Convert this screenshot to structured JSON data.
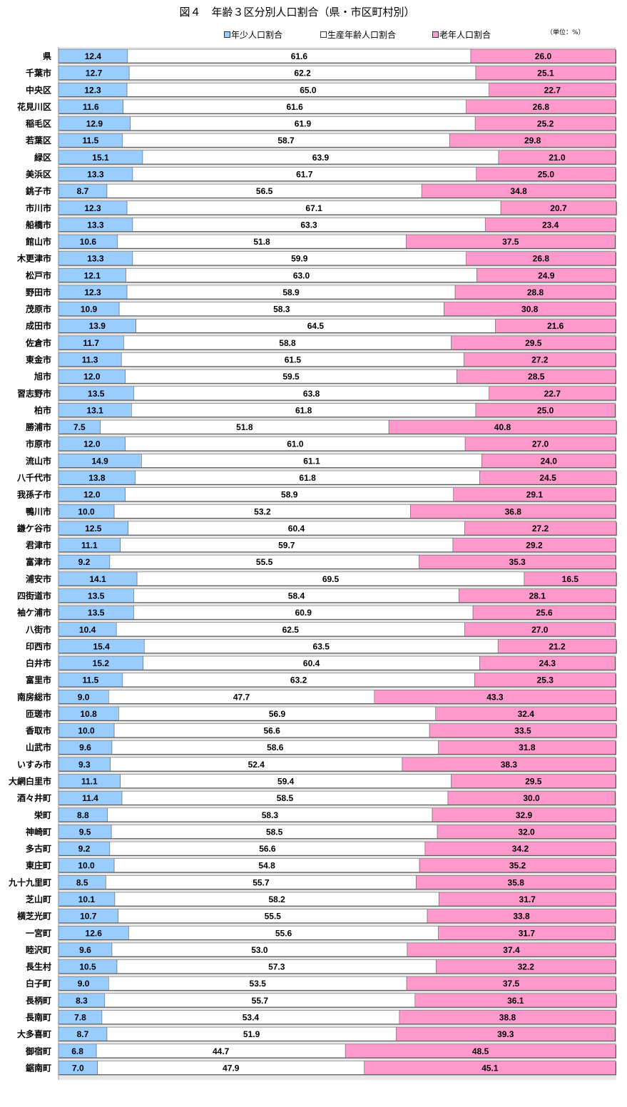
{
  "chart_data": {
    "type": "bar",
    "orientation": "horizontal",
    "stacked": "100%",
    "title": "図４　年齢３区分別人口割合（県・市区町村別）",
    "unit": "（単位：%）",
    "legend_position": "top",
    "xlim": [
      0,
      100
    ],
    "grid": false,
    "categories": [
      "県",
      "千葉市",
      "中央区",
      "花見川区",
      "稲毛区",
      "若葉区",
      "緑区",
      "美浜区",
      "銚子市",
      "市川市",
      "船橋市",
      "館山市",
      "木更津市",
      "松戸市",
      "野田市",
      "茂原市",
      "成田市",
      "佐倉市",
      "東金市",
      "旭市",
      "習志野市",
      "柏市",
      "勝浦市",
      "市原市",
      "流山市",
      "八千代市",
      "我孫子市",
      "鴨川市",
      "鎌ケ谷市",
      "君津市",
      "富津市",
      "浦安市",
      "四街道市",
      "袖ケ浦市",
      "八街市",
      "印西市",
      "白井市",
      "富里市",
      "南房総市",
      "匝瑳市",
      "香取市",
      "山武市",
      "いすみ市",
      "大網白里市",
      "酒々井町",
      "栄町",
      "神崎町",
      "多古町",
      "東庄町",
      "九十九里町",
      "芝山町",
      "横芝光町",
      "一宮町",
      "睦沢町",
      "長生村",
      "白子町",
      "長柄町",
      "長南町",
      "大多喜町",
      "御宿町",
      "鋸南町"
    ],
    "series": [
      {
        "name": "年少人口割合",
        "color": "#99ccff",
        "values": [
          12.4,
          12.7,
          12.3,
          11.6,
          12.9,
          11.5,
          15.1,
          13.3,
          8.7,
          12.3,
          13.3,
          10.6,
          13.3,
          12.1,
          12.3,
          10.9,
          13.9,
          11.7,
          11.3,
          12.0,
          13.5,
          13.1,
          7.5,
          12.0,
          14.9,
          13.8,
          12.0,
          10.0,
          12.5,
          11.1,
          9.2,
          14.1,
          13.5,
          13.5,
          10.4,
          15.4,
          15.2,
          11.5,
          9.0,
          10.8,
          10.0,
          9.6,
          9.3,
          11.1,
          11.4,
          8.8,
          9.5,
          9.2,
          10.0,
          8.5,
          10.1,
          10.7,
          12.6,
          9.6,
          10.5,
          9.0,
          8.3,
          7.8,
          8.7,
          6.8,
          7.0
        ]
      },
      {
        "name": "生産年齢人口割合",
        "color": "#ffffff",
        "values": [
          61.6,
          62.2,
          65.0,
          61.6,
          61.9,
          58.7,
          63.9,
          61.7,
          56.5,
          67.1,
          63.3,
          51.8,
          59.9,
          63.0,
          58.9,
          58.3,
          64.5,
          58.8,
          61.5,
          59.5,
          63.8,
          61.8,
          51.8,
          61.0,
          61.1,
          61.8,
          58.9,
          53.2,
          60.4,
          59.7,
          55.5,
          69.5,
          58.4,
          60.9,
          62.5,
          63.5,
          60.4,
          63.2,
          47.7,
          56.9,
          56.6,
          58.6,
          52.4,
          59.4,
          58.5,
          58.3,
          58.5,
          56.6,
          54.8,
          55.7,
          58.2,
          55.5,
          55.6,
          53.0,
          57.3,
          53.5,
          55.7,
          53.4,
          51.9,
          44.7,
          47.9
        ]
      },
      {
        "name": "老年人口割合",
        "color": "#ff99cc",
        "values": [
          26.0,
          25.1,
          22.7,
          26.8,
          25.2,
          29.8,
          21.0,
          25.0,
          34.8,
          20.7,
          23.4,
          37.5,
          26.8,
          24.9,
          28.8,
          30.8,
          21.6,
          29.5,
          27.2,
          28.5,
          22.7,
          25.0,
          40.8,
          27.0,
          24.0,
          24.5,
          29.1,
          36.8,
          27.2,
          29.2,
          35.3,
          16.5,
          28.1,
          25.6,
          27.0,
          21.2,
          24.3,
          25.3,
          43.3,
          32.4,
          33.5,
          31.8,
          38.3,
          29.5,
          30.0,
          32.9,
          32.0,
          34.2,
          35.2,
          35.8,
          31.7,
          33.8,
          31.7,
          37.4,
          32.2,
          37.5,
          36.1,
          38.8,
          39.3,
          48.5,
          45.1
        ]
      }
    ]
  }
}
